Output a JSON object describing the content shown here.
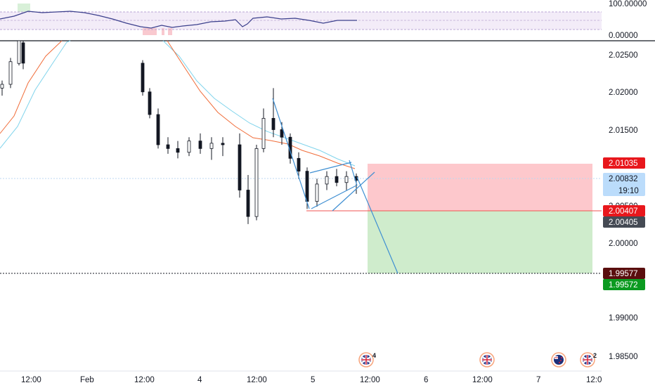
{
  "colors": {
    "candle": "#131722",
    "ema_fast": "#f06d3a",
    "ema_slow": "#80d4ec",
    "rsi_line": "#3b3f8c",
    "rsi_band": "#f3ecf8",
    "stop_zone": "#fdc8cc",
    "target_zone": "#cfeccc",
    "trend": "#3f8fd2",
    "entry_line": "#ef5350",
    "stop_badge": "#e8171c",
    "price_badge": "#bbdcfb",
    "entry_badge": "#454a54",
    "target_dark_badge": "#5a0e0e",
    "target_badge": "#0b9a20"
  },
  "rsi": {
    "labels": [
      "100.00000",
      "0.00000"
    ]
  },
  "price_axis": {
    "ticks": [
      "2.02500",
      "2.02000",
      "2.01500",
      "2.00500",
      "2.00000",
      "1.99000",
      "1.98500"
    ]
  },
  "badges": {
    "stop": "2.01035",
    "current": "2.00832",
    "countdown": "19:10",
    "entry_line": "2.00407",
    "entry": "2.00405",
    "target_line": "1.99577",
    "target": "1.99572"
  },
  "time_axis": {
    "labels": [
      "12:00",
      "Feb",
      "12:00",
      "4",
      "12:00",
      "5",
      "12:00",
      "6",
      "12:00",
      "7",
      "12:0"
    ]
  },
  "events": [
    {
      "flag": "uk-flag-icon",
      "count": "4"
    },
    {
      "flag": "uk-flag-icon",
      "count": ""
    },
    {
      "flag": "nz-flag-icon",
      "count": ""
    },
    {
      "flag": "uk-flag-icon",
      "count": "2"
    }
  ],
  "chart_data": {
    "type": "candlestick",
    "y_range": [
      1.9825,
      2.0275
    ],
    "candles_sampled": [
      [
        2.0205,
        2.0215,
        2.0195,
        2.021
      ],
      [
        2.021,
        2.0245,
        2.0205,
        2.024
      ],
      [
        2.024,
        2.0275,
        2.0235,
        2.027
      ],
      [
        2.0265,
        2.0275,
        2.023,
        2.0238
      ],
      [
        2.0238,
        2.0242,
        2.0195,
        2.02
      ],
      [
        2.02,
        2.0205,
        2.0165,
        2.017
      ],
      [
        2.017,
        2.0178,
        2.0125,
        2.013
      ],
      [
        2.013,
        2.014,
        2.0118,
        2.0125
      ],
      [
        2.0125,
        2.0135,
        2.0112,
        2.012
      ],
      [
        2.012,
        2.014,
        2.0115,
        2.0135
      ],
      [
        2.0135,
        2.0145,
        2.0118,
        2.0125
      ],
      [
        2.0125,
        2.014,
        2.011,
        2.0132
      ],
      [
        2.0132,
        2.014,
        2.0115,
        2.013
      ],
      [
        2.013,
        2.0145,
        2.006,
        2.007
      ],
      [
        2.007,
        2.009,
        2.0025,
        2.0035
      ],
      [
        2.0035,
        2.013,
        2.003,
        2.0125
      ],
      [
        2.0125,
        2.0178,
        2.012,
        2.0165
      ],
      [
        2.0165,
        2.0205,
        2.014,
        2.015
      ],
      [
        2.015,
        2.016,
        2.013,
        2.014
      ],
      [
        2.014,
        2.0145,
        2.0105,
        2.0112
      ],
      [
        2.0112,
        2.012,
        2.0085,
        2.0095
      ],
      [
        2.0095,
        2.01,
        2.0045,
        2.0055
      ],
      [
        2.0055,
        2.0085,
        2.0048,
        2.0078
      ],
      [
        2.0078,
        2.0095,
        2.007,
        2.0088
      ],
      [
        2.0088,
        2.0098,
        2.0075,
        2.008
      ],
      [
        2.008,
        2.0095,
        2.007,
        2.0088
      ],
      [
        2.0088,
        2.0092,
        2.0065,
        2.0083
      ]
    ],
    "trade": {
      "stop": 2.01035,
      "entry": 2.00407,
      "target": 1.99577,
      "current": 2.00832
    },
    "rsi_range": [
      0,
      100
    ]
  }
}
